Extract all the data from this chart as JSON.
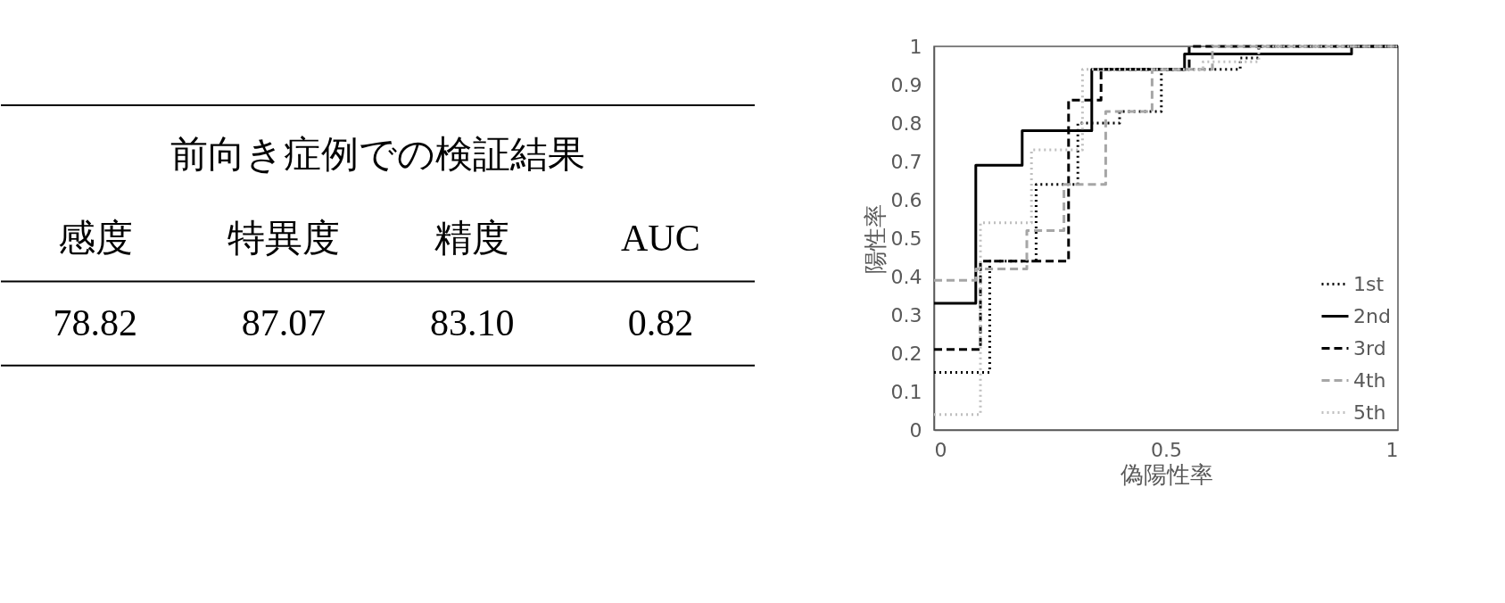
{
  "chart_data": [
    {
      "type": "other",
      "title": "前向き症例での検証結果",
      "categories": [
        "感度",
        "特異度",
        "精度",
        "AUC"
      ],
      "values": [
        78.82,
        87.07,
        83.1,
        0.82
      ],
      "value_labels": [
        "78.82",
        "87.07",
        "83.10",
        "0.82"
      ]
    },
    {
      "type": "step",
      "xlabel": "偽陽性率",
      "ylabel": "陽性率",
      "xlim": [
        0,
        1
      ],
      "ylim": [
        0,
        1
      ],
      "xticks": [
        0,
        0.5,
        1
      ],
      "yticks": [
        0,
        0.1,
        0.2,
        0.3,
        0.4,
        0.5,
        0.6,
        0.7,
        0.8,
        0.9,
        1
      ],
      "grid": false,
      "legend": "bottom right",
      "series": [
        {
          "name": "1st",
          "color": "#000000",
          "line_style": "dotted",
          "x": [
            0,
            0.12,
            0.22,
            0.31,
            0.4,
            0.49,
            0.66,
            0.7,
            1
          ],
          "values": [
            0.15,
            0.44,
            0.64,
            0.8,
            0.83,
            0.94,
            0.97,
            1,
            1
          ]
        },
        {
          "name": "2nd",
          "color": "#000000",
          "line_style": "solid",
          "x": [
            0,
            0.09,
            0.19,
            0.34,
            0.54,
            0.9,
            1
          ],
          "values": [
            0.33,
            0.69,
            0.78,
            0.94,
            0.98,
            1,
            1
          ]
        },
        {
          "name": "3rd",
          "color": "#000000",
          "line_style": "dashed",
          "x": [
            0,
            0.1,
            0.29,
            0.36,
            0.55,
            1
          ],
          "values": [
            0.21,
            0.44,
            0.86,
            0.94,
            1,
            1
          ]
        },
        {
          "name": "4th",
          "color": "#a6a6a6",
          "line_style": "dashed",
          "x": [
            0,
            0.09,
            0.2,
            0.28,
            0.37,
            0.47,
            0.6,
            1
          ],
          "values": [
            0.39,
            0.42,
            0.52,
            0.64,
            0.83,
            0.94,
            1,
            1
          ]
        },
        {
          "name": "5th",
          "color": "#bfbfbf",
          "line_style": "dotted",
          "x": [
            0,
            0.1,
            0.21,
            0.32,
            0.58,
            0.7,
            1
          ],
          "values": [
            0.04,
            0.54,
            0.73,
            0.94,
            0.96,
            1,
            1
          ]
        }
      ]
    }
  ]
}
